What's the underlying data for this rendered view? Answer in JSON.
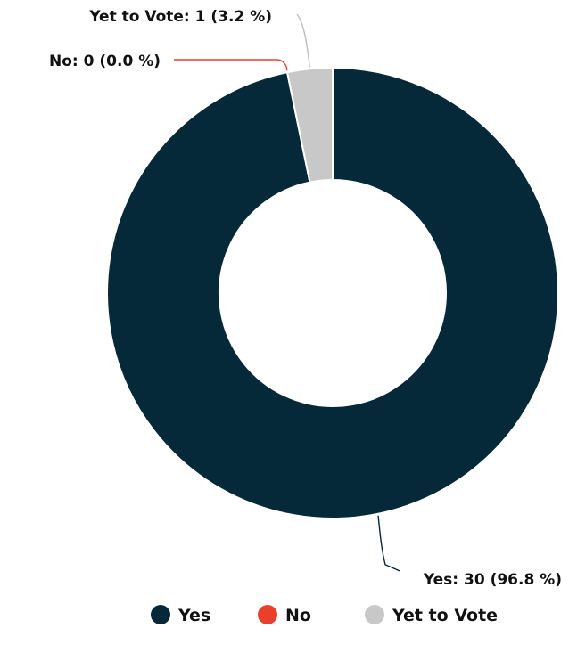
{
  "chart_data": {
    "type": "pie",
    "variant": "donut",
    "categories": [
      "Yes",
      "No",
      "Yet to Vote"
    ],
    "values": [
      30,
      0,
      1
    ],
    "percents": [
      96.8,
      0.0,
      3.2
    ],
    "colors": [
      "#06293a",
      "#e8402a",
      "#c8c8c8"
    ],
    "data_labels": [
      "Yes: 30 (96.8 %)",
      "No: 0 (0.0 %)",
      "Yet to Vote: 1 (3.2 %)"
    ],
    "legend": {
      "position": "bottom",
      "items": [
        {
          "label": "Yes",
          "color": "#06293a"
        },
        {
          "label": "No",
          "color": "#e8402a"
        },
        {
          "label": "Yet to Vote",
          "color": "#c8c8c8"
        }
      ]
    }
  }
}
